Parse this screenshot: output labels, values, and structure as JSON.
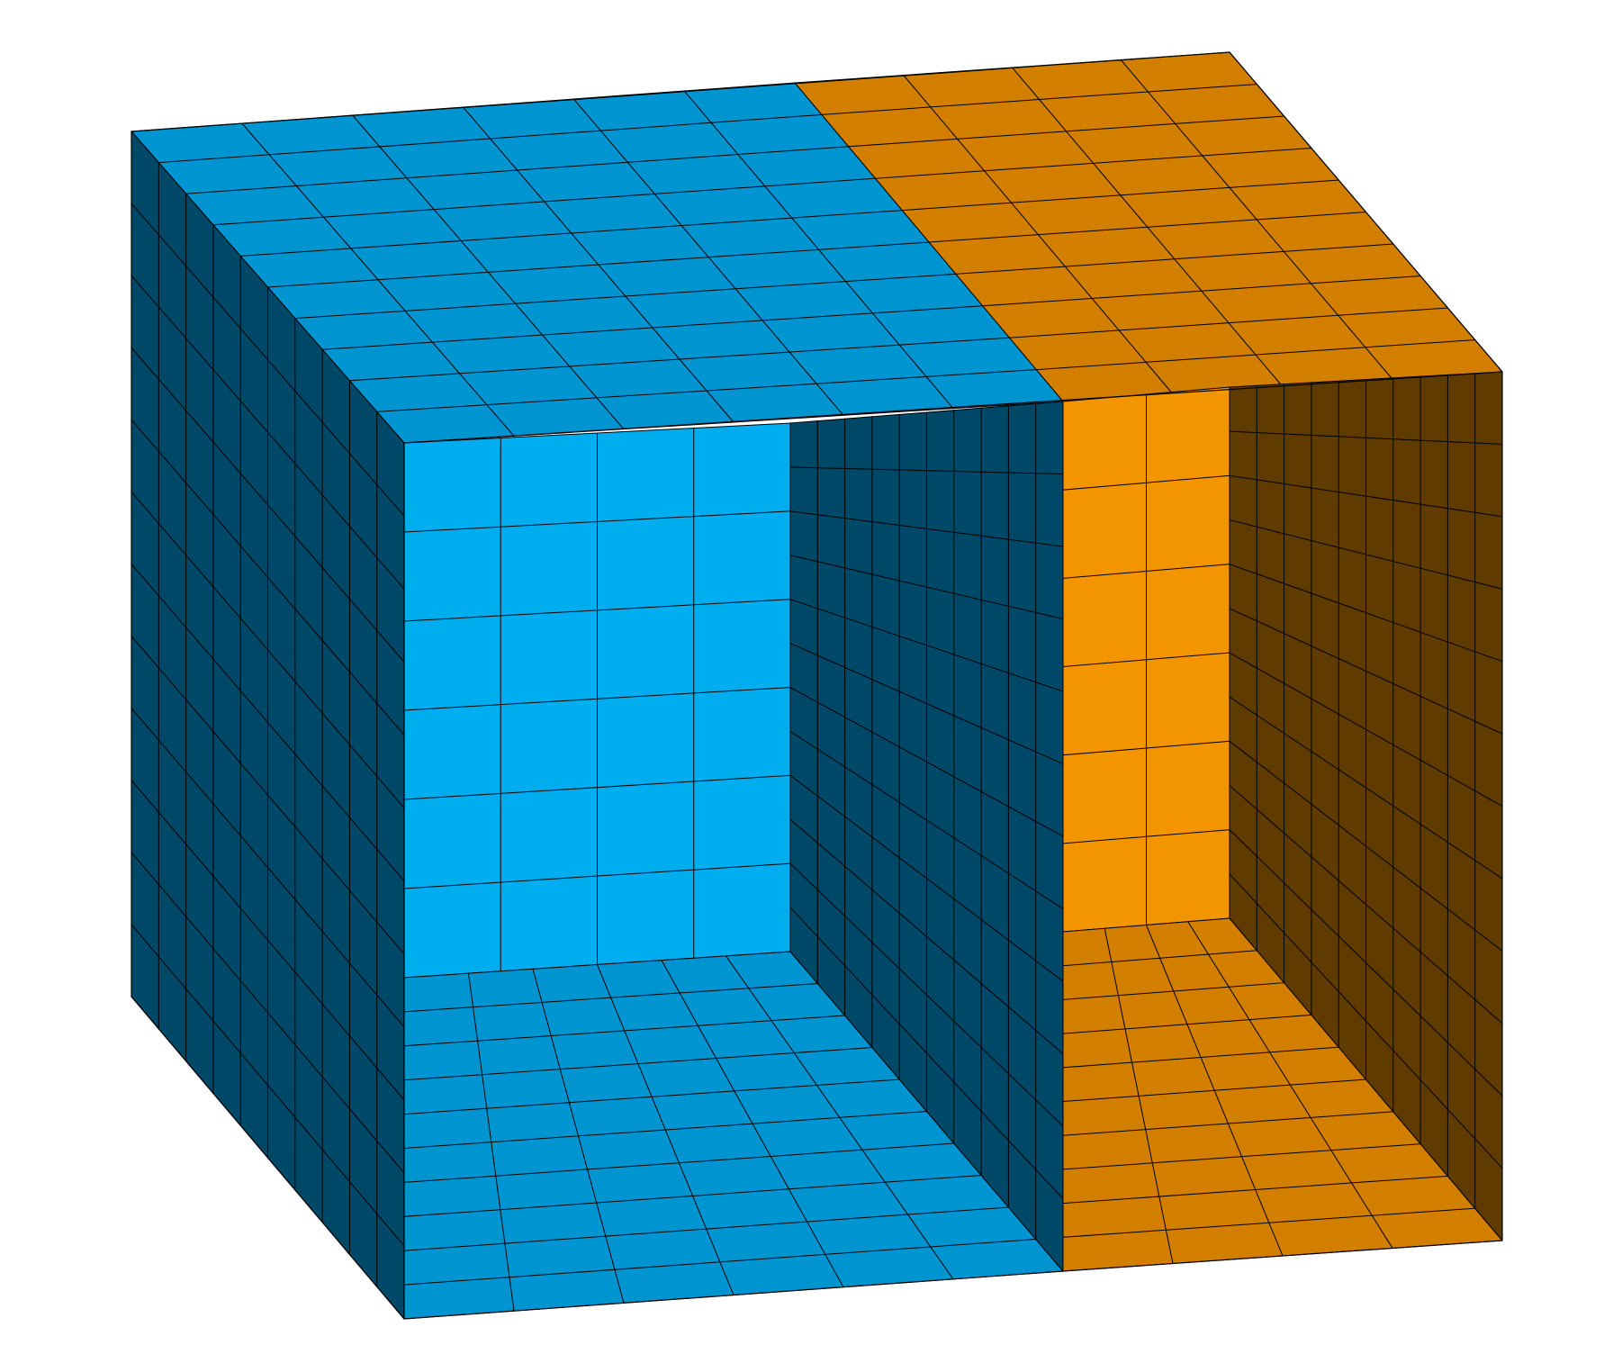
{
  "mesh": {
    "regions": [
      {
        "name": "blue-region",
        "colors": {
          "top": "#0095d0",
          "floor": "#0095d0",
          "back_wall": "#00adef",
          "side_walls": "#004867"
        }
      },
      {
        "name": "orange-region",
        "colors": {
          "top": "#d27f00",
          "floor": "#d27f00",
          "back_wall": "#f29500",
          "side_walls": "#603b00"
        }
      }
    ],
    "line_color": "#000000",
    "background": "#ffffff"
  }
}
